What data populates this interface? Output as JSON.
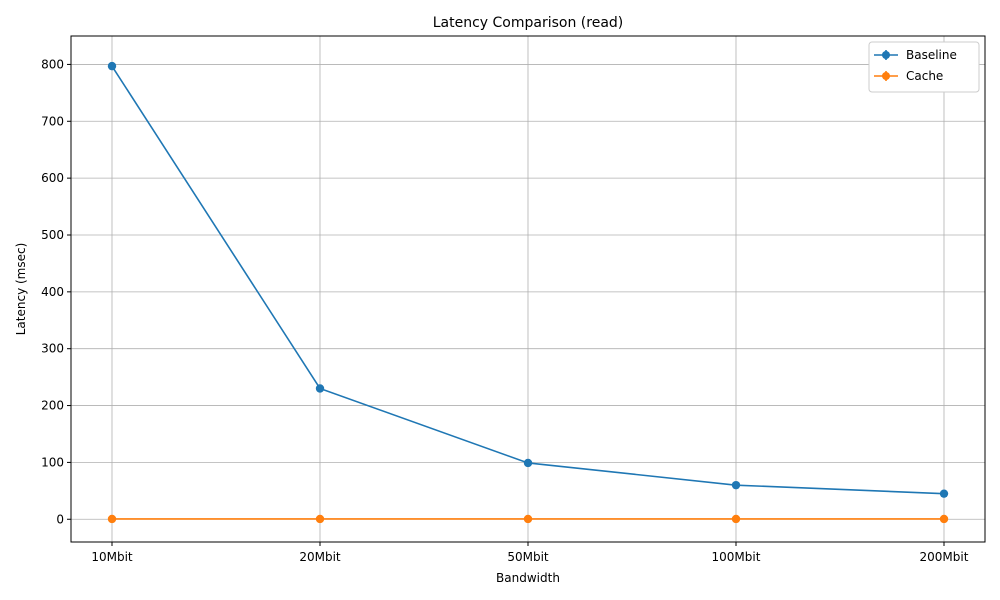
{
  "chart_data": {
    "type": "line",
    "title": "Latency Comparison (read)",
    "xlabel": "Bandwidth",
    "ylabel": "Latency (msec)",
    "categories": [
      "10Mbit",
      "20Mbit",
      "50Mbit",
      "100Mbit",
      "200Mbit"
    ],
    "series": [
      {
        "name": "Baseline",
        "color": "#1f77b4",
        "values": [
          797,
          230,
          99,
          60,
          45
        ]
      },
      {
        "name": "Cache",
        "color": "#ff7f0e",
        "values": [
          0.5,
          0.5,
          0.5,
          0.5,
          0.5
        ]
      }
    ],
    "ylim": [
      -40,
      850
    ],
    "yticks": [
      0,
      100,
      200,
      300,
      400,
      500,
      600,
      700,
      800
    ],
    "grid": true,
    "legend_position": "top-right",
    "markers": true,
    "error_bars": true
  }
}
